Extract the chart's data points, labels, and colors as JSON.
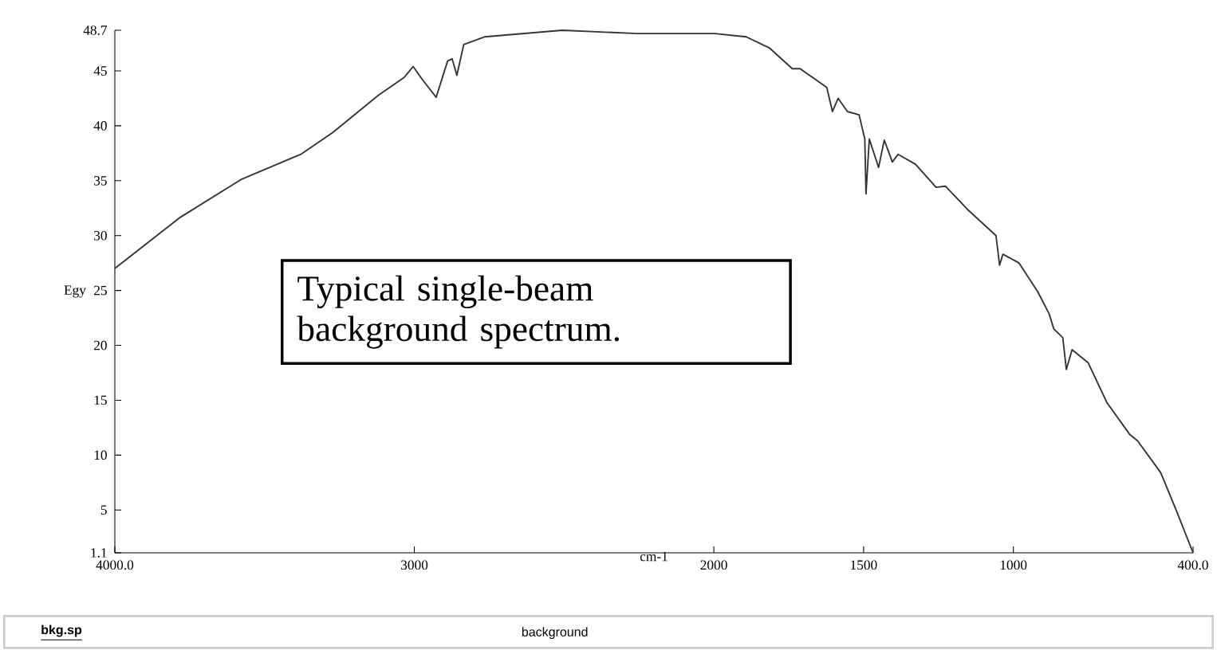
{
  "chart_data": {
    "type": "line",
    "xlabel": "cm-1",
    "ylabel": "Egy",
    "x": [
      4000,
      3785,
      3579,
      3379,
      3272,
      3119,
      3034,
      3004,
      2973,
      2927,
      2889,
      2874,
      2858,
      2835,
      2766,
      2506,
      2253,
      1997,
      1892,
      1815,
      1738,
      1712,
      1623,
      1604,
      1585,
      1554,
      1515,
      1496,
      1492,
      1481,
      1450,
      1431,
      1404,
      1385,
      1327,
      1258,
      1227,
      1150,
      1058,
      1046,
      1035,
      981,
      919,
      881,
      865,
      835,
      823,
      804,
      750,
      688,
      612,
      585,
      508,
      458,
      400
    ],
    "series": [
      {
        "color": "#333333",
        "values": [
          27.0,
          31.6,
          35.1,
          37.4,
          39.4,
          42.8,
          44.4,
          45.4,
          44.2,
          42.6,
          45.9,
          46.1,
          44.6,
          47.4,
          48.1,
          48.7,
          48.4,
          48.4,
          48.1,
          47.1,
          45.2,
          45.2,
          43.5,
          41.3,
          42.5,
          41.3,
          41.0,
          38.8,
          33.8,
          38.8,
          36.2,
          38.7,
          36.7,
          37.4,
          36.5,
          34.4,
          34.5,
          32.3,
          30.0,
          27.3,
          28.3,
          27.5,
          24.9,
          22.9,
          21.5,
          20.7,
          17.8,
          19.6,
          18.4,
          14.8,
          11.9,
          11.3,
          8.4,
          5.1,
          1.1
        ]
      }
    ],
    "xlim": [
      4000,
      400
    ],
    "xticks": [
      {
        "value": 4000,
        "label": "4000.0"
      },
      3000,
      2000,
      1500,
      1000,
      {
        "value": 400,
        "label": "400.0"
      }
    ],
    "ylim": [
      1.1,
      48.7
    ],
    "yticks": [
      1.1,
      5,
      10,
      15,
      20,
      25,
      30,
      35,
      40,
      45,
      48.7
    ],
    "grid": false,
    "legend": false,
    "marker": "none",
    "line_style": "solid",
    "annotations": [
      "Typical single-beam background spectrum.",
      "**bkg.sp**",
      "background"
    ]
  }
}
